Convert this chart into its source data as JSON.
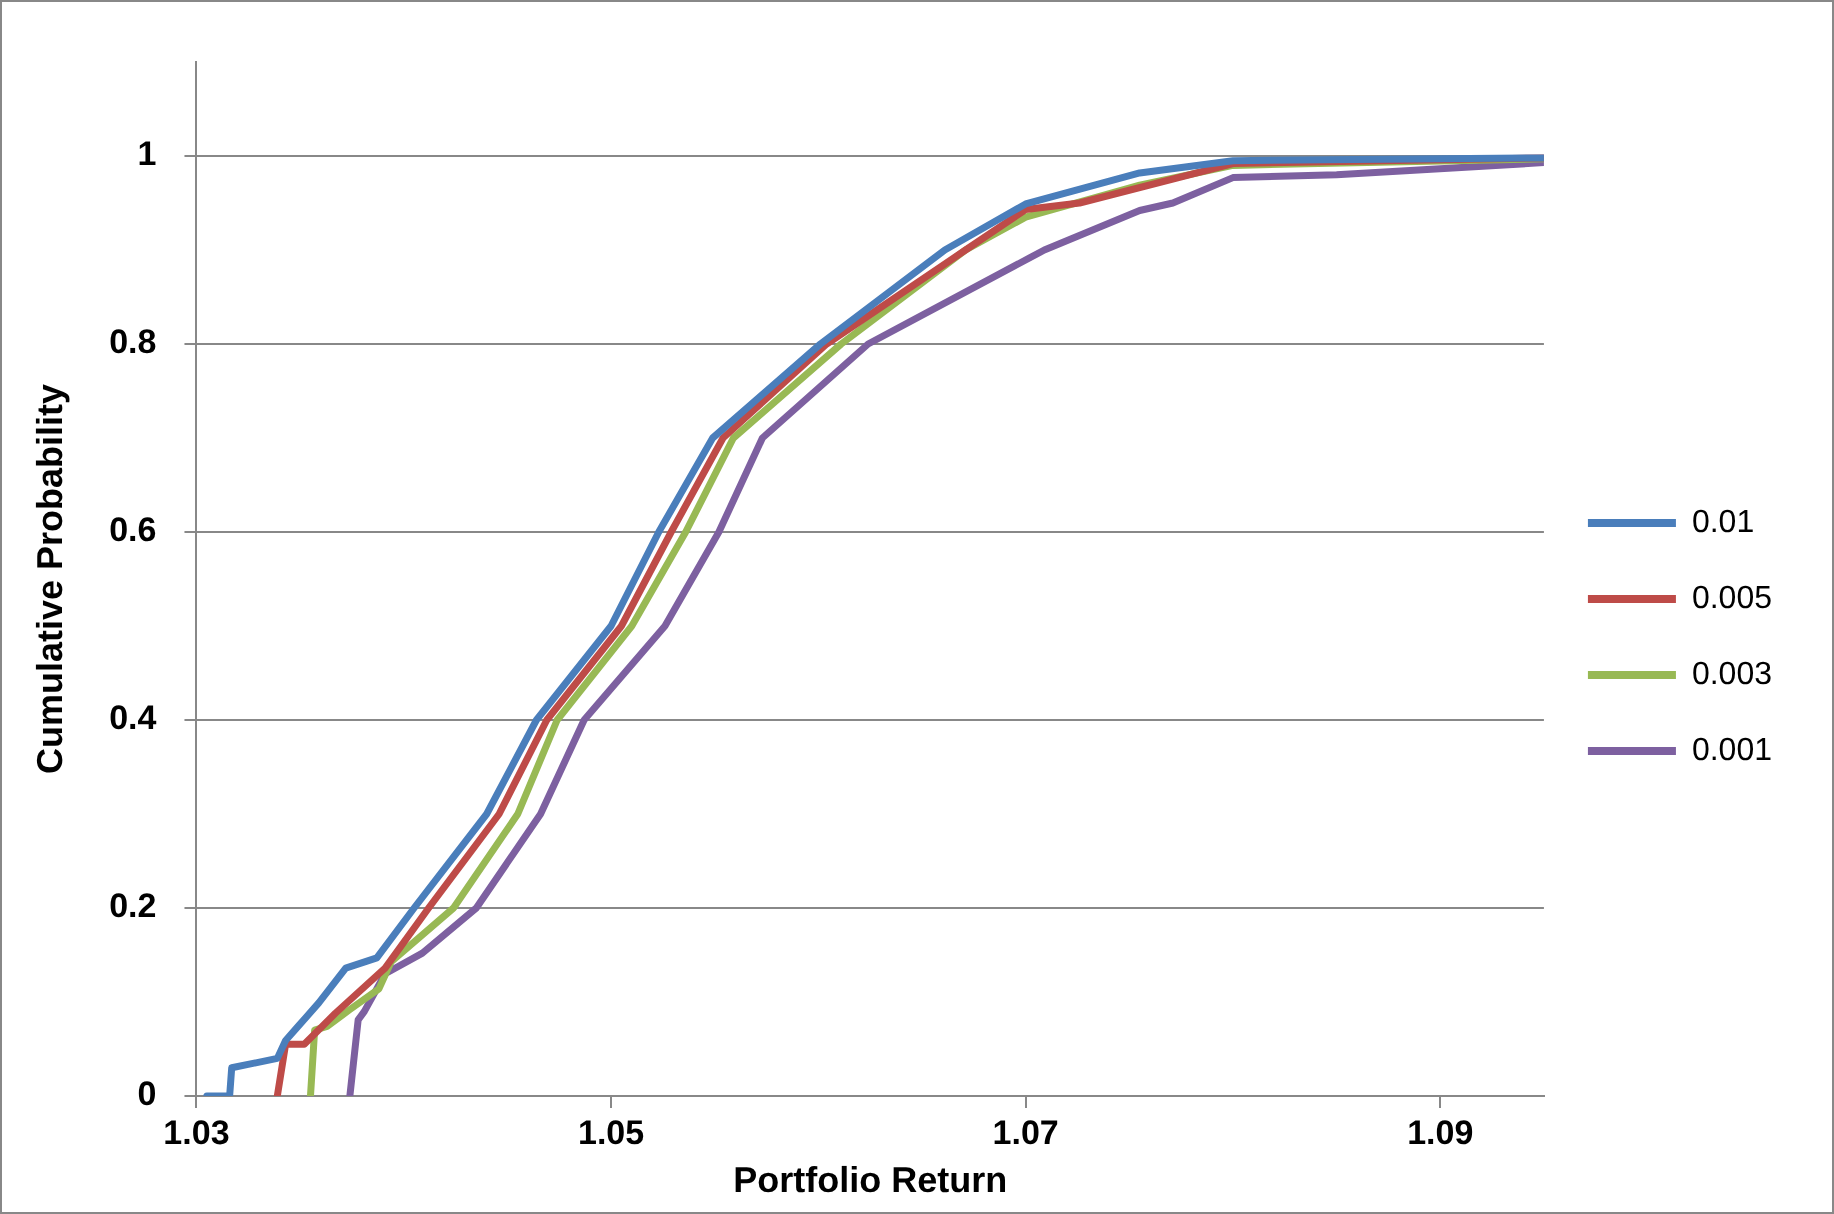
{
  "chart_data": {
    "type": "line",
    "xlabel": "Portfolio Return",
    "ylabel": "Cumulative Probability",
    "xlim": [
      1.03,
      1.095
    ],
    "xticks": [
      1.03,
      1.05,
      1.07,
      1.09
    ],
    "ylim": [
      0,
      1.1
    ],
    "yticks": [
      0,
      0.2,
      0.4,
      0.6,
      0.8,
      1
    ],
    "grid": "y",
    "legend": "right",
    "marker": "none",
    "line_style": "solid",
    "series": [
      {
        "name": "0.01",
        "color": "#4a7ebb",
        "x": [
          1.0305,
          1.0316,
          1.0317,
          1.0339,
          1.0343,
          1.0349,
          1.0359,
          1.0372,
          1.0387,
          1.0405,
          1.044,
          1.0464,
          1.05,
          1.0523,
          1.0549,
          1.0601,
          1.0661,
          1.07,
          1.0755,
          1.08,
          1.095
        ],
        "values": [
          0,
          0,
          0.03,
          0.04,
          0.059,
          0.074,
          0.099,
          0.136,
          0.147,
          0.2,
          0.3,
          0.4,
          0.5,
          0.6,
          0.7,
          0.8,
          0.9,
          0.949,
          0.982,
          0.995,
          0.998
        ]
      },
      {
        "name": "0.005",
        "color": "#be4b48",
        "x": [
          1.0339,
          1.0343,
          1.0352,
          1.0367,
          1.0391,
          1.0412,
          1.0446,
          1.0469,
          1.0505,
          1.0529,
          1.0554,
          1.0604,
          1.0671,
          1.07,
          1.0726,
          1.08,
          1.095
        ],
        "values": [
          0,
          0.055,
          0.055,
          0.088,
          0.136,
          0.2,
          0.3,
          0.4,
          0.5,
          0.6,
          0.7,
          0.8,
          0.9,
          0.943,
          0.95,
          0.992,
          0.998
        ]
      },
      {
        "name": "0.003",
        "color": "#98b954",
        "x": [
          1.0355,
          1.0357,
          1.0363,
          1.0374,
          1.0388,
          1.0394,
          1.0424,
          1.0455,
          1.0474,
          1.051,
          1.0536,
          1.0559,
          1.0611,
          1.0671,
          1.07,
          1.0755,
          1.08,
          1.095
        ],
        "values": [
          0,
          0.07,
          0.074,
          0.092,
          0.114,
          0.143,
          0.2,
          0.3,
          0.4,
          0.5,
          0.6,
          0.7,
          0.8,
          0.9,
          0.935,
          0.969,
          0.99,
          0.997
        ]
      },
      {
        "name": "0.001",
        "color": "#7d60a0",
        "x": [
          1.0374,
          1.0378,
          1.0381,
          1.0391,
          1.0409,
          1.0435,
          1.0466,
          1.0487,
          1.0526,
          1.0552,
          1.0573,
          1.0624,
          1.0709,
          1.0755,
          1.0771,
          1.08,
          1.085,
          1.095
        ],
        "values": [
          0,
          0.081,
          0.09,
          0.13,
          0.152,
          0.2,
          0.3,
          0.4,
          0.5,
          0.6,
          0.7,
          0.8,
          0.9,
          0.942,
          0.95,
          0.977,
          0.98,
          0.993
        ]
      }
    ]
  }
}
